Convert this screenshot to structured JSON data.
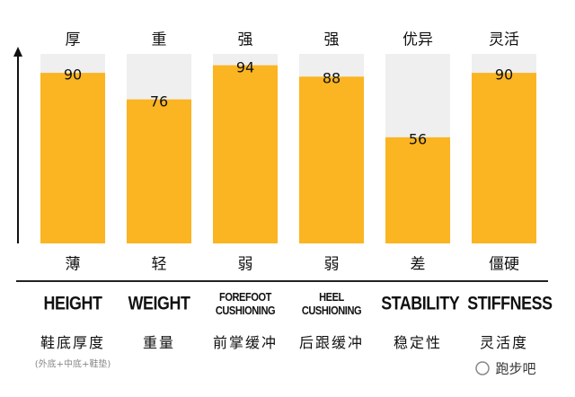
{
  "chart_data": {
    "type": "bar",
    "categories": [
      "HEIGHT",
      "WEIGHT",
      "FOREFOOT CUSHIONING",
      "HEEL CUSHIONING",
      "STABILITY",
      "STIFFNESS"
    ],
    "categories_cn": [
      "鞋底厚度",
      "重量",
      "前掌缓冲",
      "后跟缓冲",
      "稳定性",
      "灵活度"
    ],
    "top_labels": [
      "厚",
      "重",
      "强",
      "强",
      "优异",
      "灵活"
    ],
    "bottom_labels": [
      "薄",
      "轻",
      "弱",
      "弱",
      "差",
      "僵硬"
    ],
    "values": [
      90,
      76,
      94,
      88,
      56,
      90
    ],
    "color": "#fbb422",
    "background_color": "#efefef",
    "ylim": [
      0,
      100
    ],
    "note": "(外底+中底+鞋垫)"
  },
  "watermark": "跑步吧"
}
